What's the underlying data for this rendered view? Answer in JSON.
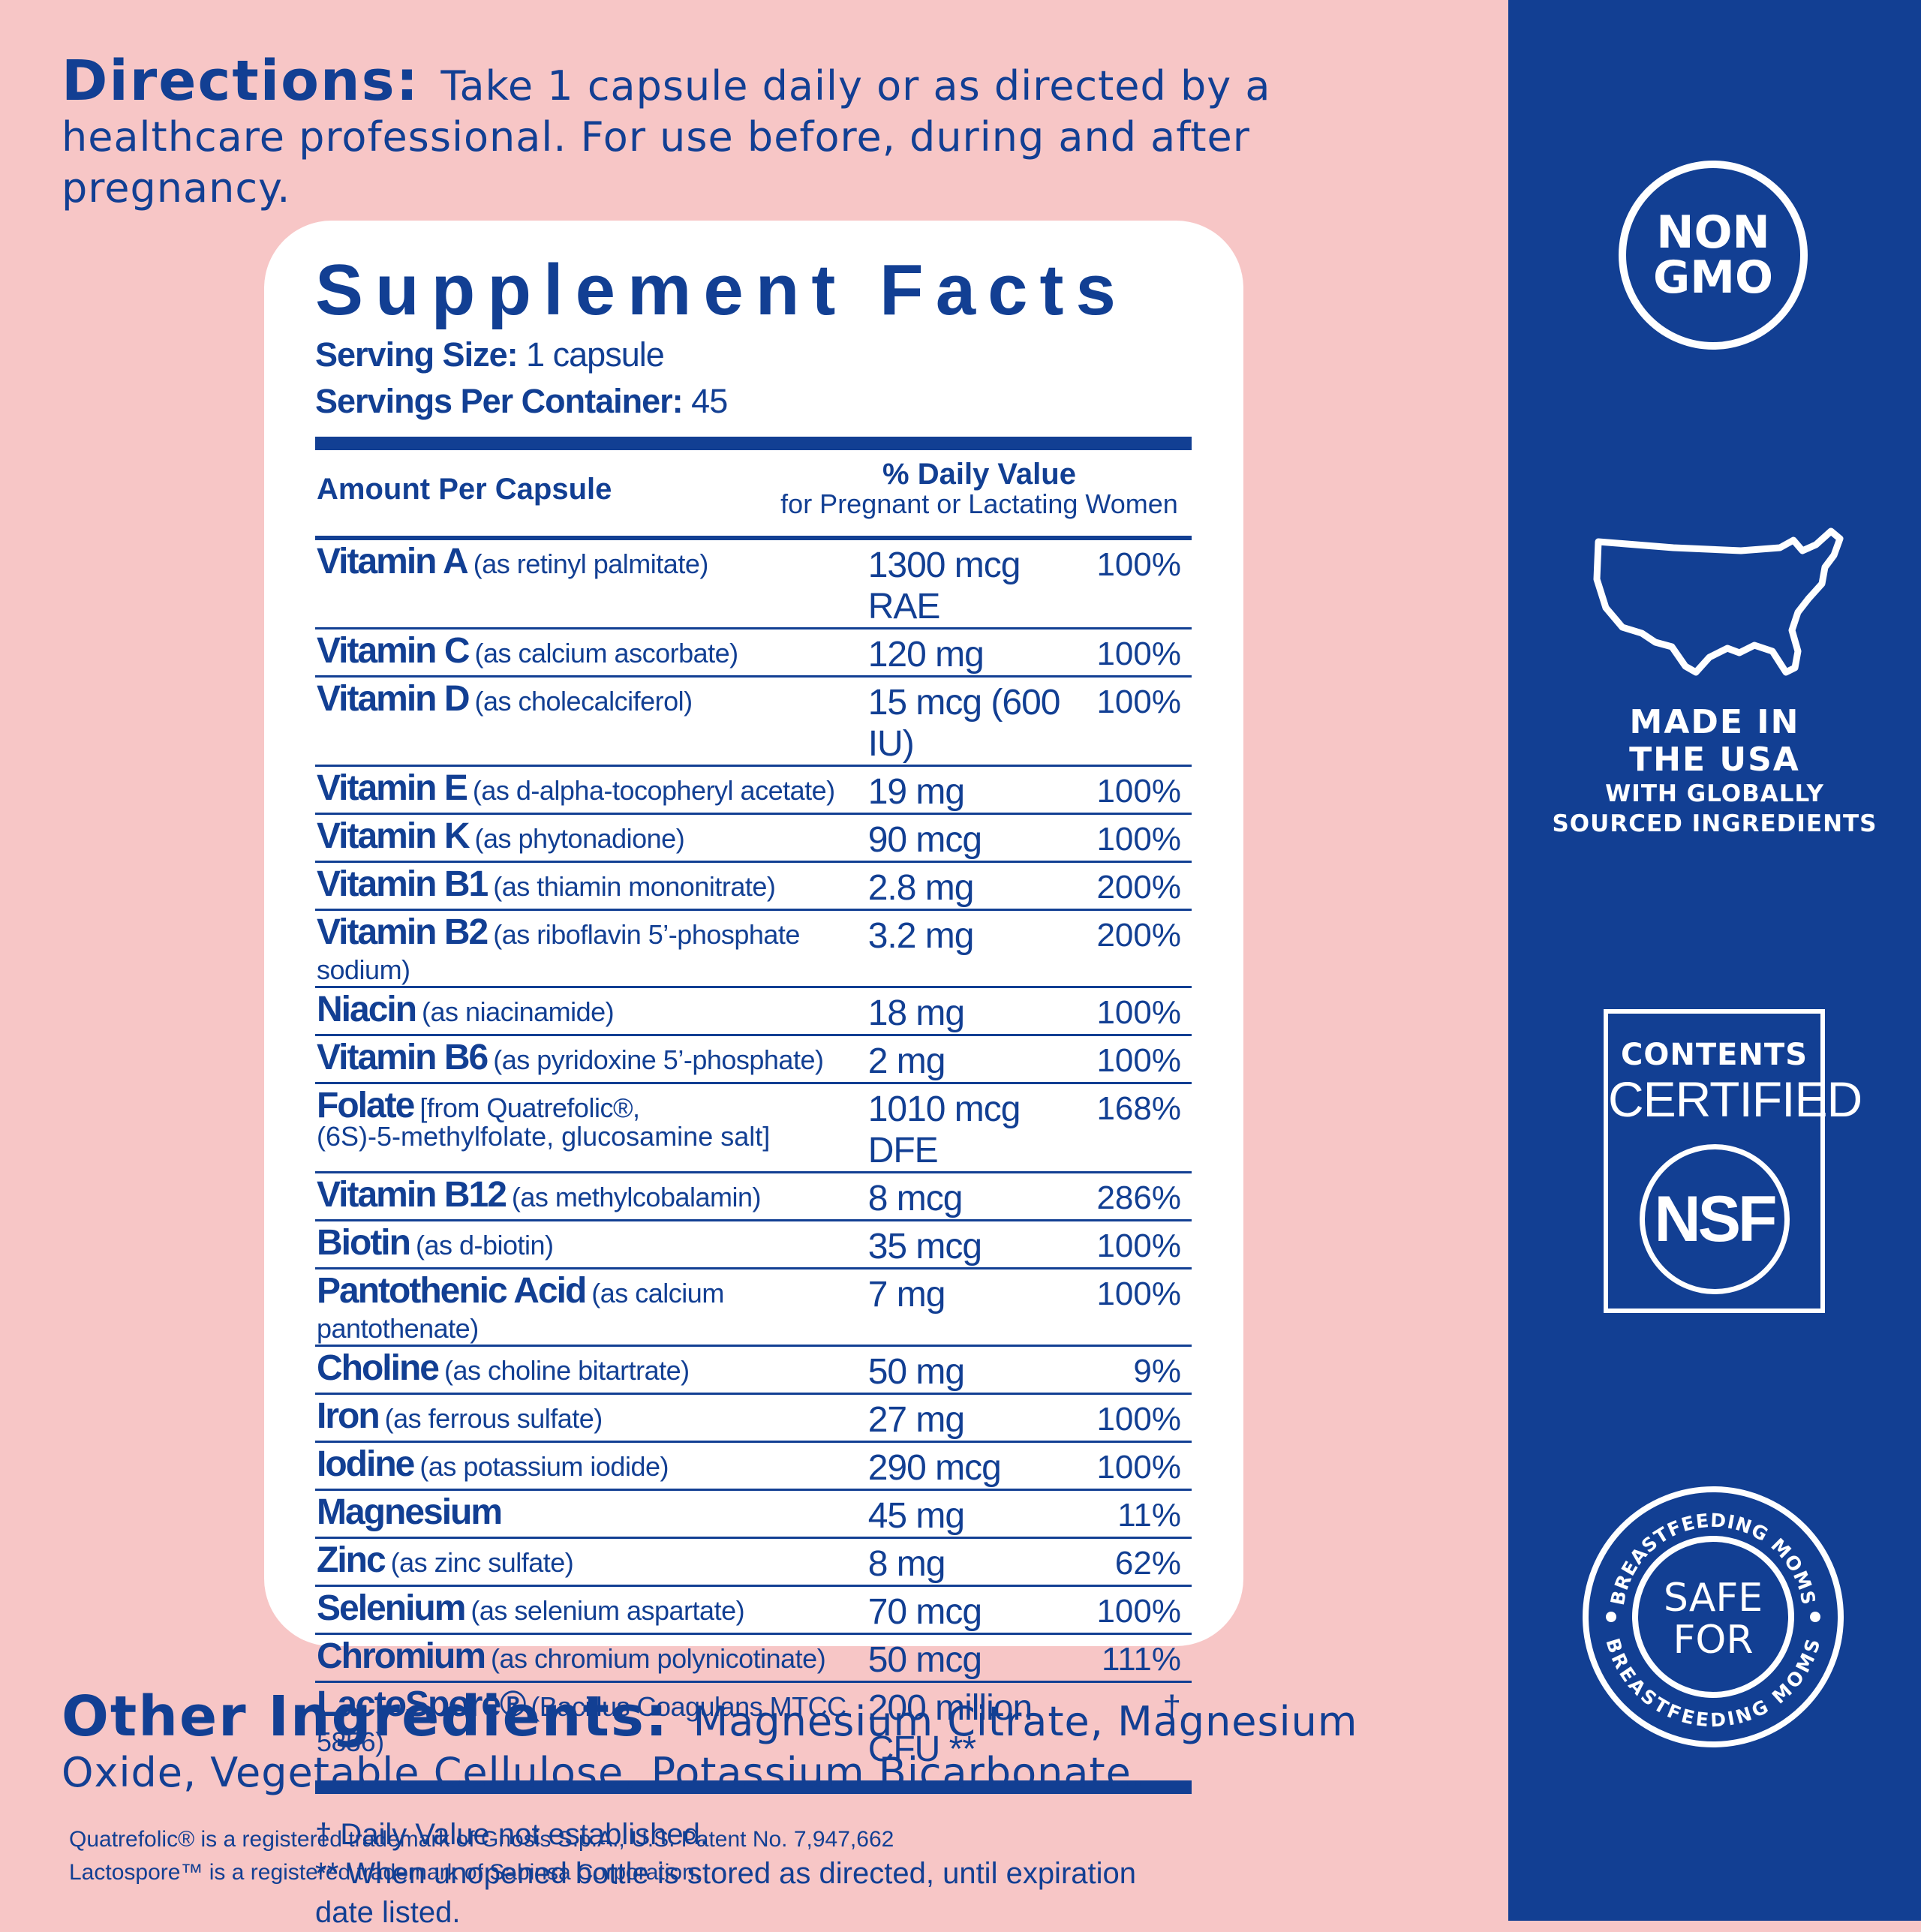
{
  "directions": {
    "label": "Directions:",
    "text": "Take 1 capsule daily or as directed by a healthcare professional. For use before, during and after pregnancy."
  },
  "facts": {
    "title": "Supplement Facts",
    "serving_size_label": "Serving Size:",
    "serving_size_value": "1 capsule",
    "servings_label": "Servings Per Container:",
    "servings_value": "45",
    "amount_header": "Amount Per Capsule",
    "dv_header": "% Daily Value",
    "dv_subheader": "for Pregnant or Lactating Women",
    "rows": [
      {
        "name": "Vitamin A",
        "desc": "(as retinyl palmitate)",
        "amount": "1300 mcg RAE",
        "dv": "100%"
      },
      {
        "name": "Vitamin C",
        "desc": "(as calcium ascorbate)",
        "amount": "120 mg",
        "dv": "100%"
      },
      {
        "name": "Vitamin D",
        "desc": "(as cholecalciferol)",
        "amount": "15 mcg (600 IU)",
        "dv": "100%"
      },
      {
        "name": "Vitamin E",
        "desc": "(as d-alpha-tocopheryl acetate)",
        "amount": "19 mg",
        "dv": "100%"
      },
      {
        "name": "Vitamin K",
        "desc": "(as phytonadione)",
        "amount": "90 mcg",
        "dv": "100%"
      },
      {
        "name": "Vitamin B1",
        "desc": "(as thiamin mononitrate)",
        "amount": "2.8 mg",
        "dv": "200%"
      },
      {
        "name": "Vitamin B2",
        "desc": "(as riboflavin 5’-phosphate sodium)",
        "amount": "3.2 mg",
        "dv": "200%"
      },
      {
        "name": "Niacin",
        "desc": "(as niacinamide)",
        "amount": "18 mg",
        "dv": "100%"
      },
      {
        "name": "Vitamin B6",
        "desc": "(as pyridoxine 5’-phosphate)",
        "amount": "2 mg",
        "dv": "100%"
      },
      {
        "name": "Folate",
        "desc": "[from Quatrefolic®,",
        "desc2": "(6S)-5-methylfolate, glucosamine salt]",
        "amount": "1010 mcg DFE",
        "dv": "168%"
      },
      {
        "name": "Vitamin B12",
        "desc": "(as methylcobalamin)",
        "amount": "8 mcg",
        "dv": "286%"
      },
      {
        "name": "Biotin",
        "desc": "(as d-biotin)",
        "amount": "35 mcg",
        "dv": "100%"
      },
      {
        "name": "Pantothenic Acid",
        "desc": "(as calcium pantothenate)",
        "amount": "7 mg",
        "dv": "100%"
      },
      {
        "name": "Choline",
        "desc": "(as choline bitartrate)",
        "amount": "50 mg",
        "dv": "9%"
      },
      {
        "name": "Iron",
        "desc": "(as ferrous sulfate)",
        "amount": "27 mg",
        "dv": "100%"
      },
      {
        "name": "Iodine",
        "desc": "(as potassium iodide)",
        "amount": "290 mcg",
        "dv": "100%"
      },
      {
        "name": "Magnesium",
        "desc": "",
        "amount": "45 mg",
        "dv": "11%"
      },
      {
        "name": "Zinc",
        "desc": "(as zinc sulfate)",
        "amount": "8 mg",
        "dv": "62%"
      },
      {
        "name": "Selenium",
        "desc": "(as selenium aspartate)",
        "amount": "70 mcg",
        "dv": "100%"
      },
      {
        "name": "Chromium",
        "desc": "(as chromium polynicotinate)",
        "amount": "50 mcg",
        "dv": "111%"
      }
    ],
    "probiotic": {
      "name": "LactoSpore®",
      "desc": "(Bacillus Coagulans MTCC 5856)",
      "amount": "200 million CFU **",
      "dv": "†"
    },
    "footnote1": "† Daily Value not established.",
    "footnote2": "** When unopened bottle is stored as directed, until expiration date listed."
  },
  "other_ingredients": {
    "label": "Other Ingredients:",
    "text": "Magnesium Citrate, Magnesium Oxide, Vegetable Cellulose, Potassium Bicarbonate."
  },
  "trademarks": {
    "line1": "Quatrefolic® is a registered trademark of Gnosis S.p.A., U.S. Patent No. 7,947,662",
    "line2": "Lactospore™ is a registered trademark of Sabinsa Corporation."
  },
  "badges": {
    "non_gmo": [
      "NON",
      "GMO"
    ],
    "made_in": [
      "MADE IN",
      "THE USA"
    ],
    "made_in_sub": [
      "WITH GLOBALLY",
      "SOURCED INGREDIENTS"
    ],
    "nsf_top": "CONTENTS",
    "nsf_mid": "CERTIFIED",
    "nsf_logo": "NSF",
    "bf_ring": "BREASTFEEDING MOMS",
    "bf_center": [
      "SAFE",
      "FOR"
    ]
  },
  "colors": {
    "navy": "#123F93",
    "pink": "#F7C6C6",
    "white": "#FFFFFF"
  }
}
